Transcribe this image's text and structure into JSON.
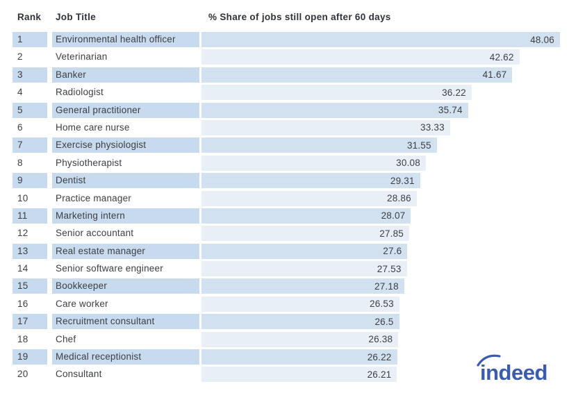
{
  "header": {
    "rank_label": "Rank",
    "job_title_label": "Job Title",
    "value_label": "% Share of jobs still open after 60 days"
  },
  "chart_data": {
    "type": "bar",
    "orientation": "horizontal",
    "title": "% Share of jobs still open after 60 days",
    "xlabel": "% Share of jobs still open after 60 days",
    "ylabel": "Job Title",
    "xlim": [
      0,
      48.06
    ],
    "grid": false,
    "legend": "none",
    "rows": [
      {
        "rank": 1,
        "job_title": "Environmental health officer",
        "value": 48.06
      },
      {
        "rank": 2,
        "job_title": "Veterinarian",
        "value": 42.62
      },
      {
        "rank": 3,
        "job_title": "Banker",
        "value": 41.67
      },
      {
        "rank": 4,
        "job_title": "Radiologist",
        "value": 36.22
      },
      {
        "rank": 5,
        "job_title": "General practitioner",
        "value": 35.74
      },
      {
        "rank": 6,
        "job_title": "Home care nurse",
        "value": 33.33
      },
      {
        "rank": 7,
        "job_title": "Exercise physiologist",
        "value": 31.55
      },
      {
        "rank": 8,
        "job_title": "Physiotherapist",
        "value": 30.08
      },
      {
        "rank": 9,
        "job_title": "Dentist",
        "value": 29.31
      },
      {
        "rank": 10,
        "job_title": "Practice manager",
        "value": 28.86
      },
      {
        "rank": 11,
        "job_title": "Marketing intern",
        "value": 28.07
      },
      {
        "rank": 12,
        "job_title": "Senior accountant",
        "value": 27.85
      },
      {
        "rank": 13,
        "job_title": "Real estate manager",
        "value": 27.6
      },
      {
        "rank": 14,
        "job_title": "Senior software engineer",
        "value": 27.53
      },
      {
        "rank": 15,
        "job_title": "Bookkeeper",
        "value": 27.18
      },
      {
        "rank": 16,
        "job_title": "Care worker",
        "value": 26.53
      },
      {
        "rank": 17,
        "job_title": "Recruitment consultant",
        "value": 26.5
      },
      {
        "rank": 18,
        "job_title": "Chef",
        "value": 26.38
      },
      {
        "rank": 19,
        "job_title": "Medical receptionist",
        "value": 26.22
      },
      {
        "rank": 20,
        "job_title": "Consultant",
        "value": 26.21
      }
    ]
  },
  "branding": {
    "logo_text": "indeed",
    "logo_color": "#3a5caa"
  },
  "colors": {
    "row_shade": "#c8dbee",
    "bar_shaded_row": "#d2e1f0",
    "bar_plain_row": "#e9eff7",
    "text": "#3b3e43"
  }
}
